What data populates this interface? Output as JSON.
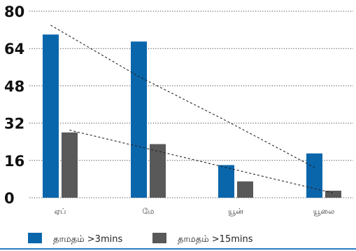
{
  "chart_data": {
    "type": "bar",
    "categories": [
      "ஏப்",
      "மே",
      "யூன்",
      "யூலை"
    ],
    "series": [
      {
        "name": "தாமதம் >3mins",
        "color": "#0a66ab",
        "values": [
          70,
          67,
          14,
          19
        ]
      },
      {
        "name": "தாமதம் >15mins",
        "color": "#595959",
        "values": [
          28,
          23,
          7,
          3
        ]
      }
    ],
    "trendlines": [
      {
        "series": "தாமதம் >3mins",
        "values": [
          74,
          52,
          33,
          13
        ]
      },
      {
        "series": "தாமதம் >15mins",
        "values": [
          29,
          20,
          11,
          2
        ]
      }
    ],
    "yticks": [
      0,
      16,
      32,
      48,
      64,
      80
    ],
    "ylim": [
      0,
      80
    ],
    "grid": true,
    "legend_position": "bottom-left",
    "bottom_rule_color": "#2b7bc4"
  }
}
